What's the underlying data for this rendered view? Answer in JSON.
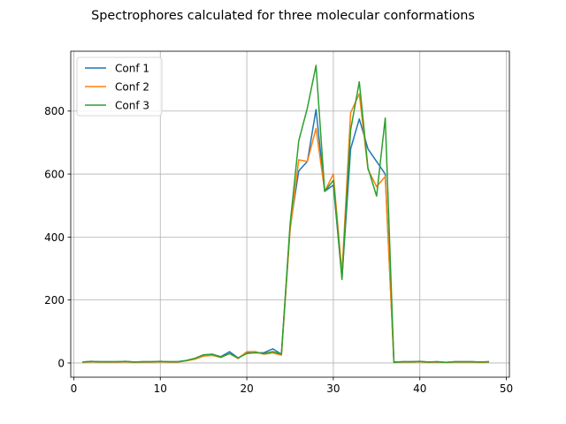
{
  "chart_data": {
    "type": "line",
    "title": "Spectrophores calculated for three molecular conformations",
    "xlabel": "",
    "ylabel": "",
    "xlim": [
      -0.35,
      50.35
    ],
    "ylim": [
      -45,
      990
    ],
    "xticks": [
      0,
      10,
      20,
      30,
      40,
      50
    ],
    "yticks": [
      0,
      200,
      400,
      600,
      800
    ],
    "grid": true,
    "legend_position": "upper-left",
    "x": [
      1,
      2,
      3,
      4,
      5,
      6,
      7,
      8,
      9,
      10,
      11,
      12,
      13,
      14,
      15,
      16,
      17,
      18,
      19,
      20,
      21,
      22,
      23,
      24,
      25,
      26,
      27,
      28,
      29,
      30,
      31,
      32,
      33,
      34,
      35,
      36,
      37,
      38,
      39,
      40,
      41,
      42,
      43,
      44,
      45,
      46,
      47,
      48
    ],
    "series": [
      {
        "name": "Conf 1",
        "color": "#1f77b4",
        "values": [
          3,
          5,
          4,
          4,
          4,
          5,
          3,
          4,
          4,
          5,
          4,
          4,
          8,
          14,
          26,
          28,
          20,
          36,
          16,
          33,
          32,
          33,
          45,
          28,
          430,
          610,
          640,
          805,
          545,
          565,
          270,
          680,
          775,
          680,
          640,
          600,
          3,
          4,
          4,
          5,
          3,
          4,
          2,
          4,
          4,
          4,
          3,
          4
        ]
      },
      {
        "name": "Conf 2",
        "color": "#ff7f0e",
        "values": [
          2,
          4,
          3,
          3,
          3,
          4,
          2,
          3,
          3,
          4,
          3,
          3,
          7,
          12,
          22,
          24,
          18,
          30,
          14,
          36,
          36,
          28,
          32,
          25,
          420,
          645,
          640,
          745,
          545,
          600,
          285,
          795,
          855,
          615,
          560,
          592,
          2,
          3,
          3,
          4,
          2,
          3,
          2,
          3,
          3,
          3,
          2,
          3
        ]
      },
      {
        "name": "Conf 3",
        "color": "#2ca02c",
        "values": [
          3,
          5,
          4,
          4,
          4,
          5,
          3,
          4,
          4,
          5,
          4,
          4,
          8,
          15,
          26,
          28,
          18,
          30,
          16,
          30,
          33,
          30,
          36,
          28,
          440,
          705,
          810,
          945,
          545,
          580,
          265,
          740,
          893,
          620,
          530,
          778,
          2,
          4,
          4,
          5,
          3,
          4,
          2,
          4,
          4,
          4,
          3,
          4
        ]
      }
    ]
  }
}
